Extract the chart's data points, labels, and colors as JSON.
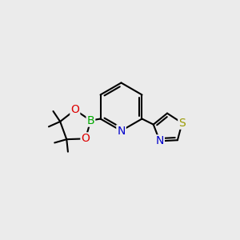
{
  "bg_color": "#ebebeb",
  "bond_color": "#000000",
  "bond_width": 1.5,
  "atom_colors": {
    "N": "#0000cc",
    "O": "#dd0000",
    "B": "#00aa00",
    "S": "#999900",
    "C": "#000000"
  },
  "font_size": 10,
  "font_size_small": 8.5
}
